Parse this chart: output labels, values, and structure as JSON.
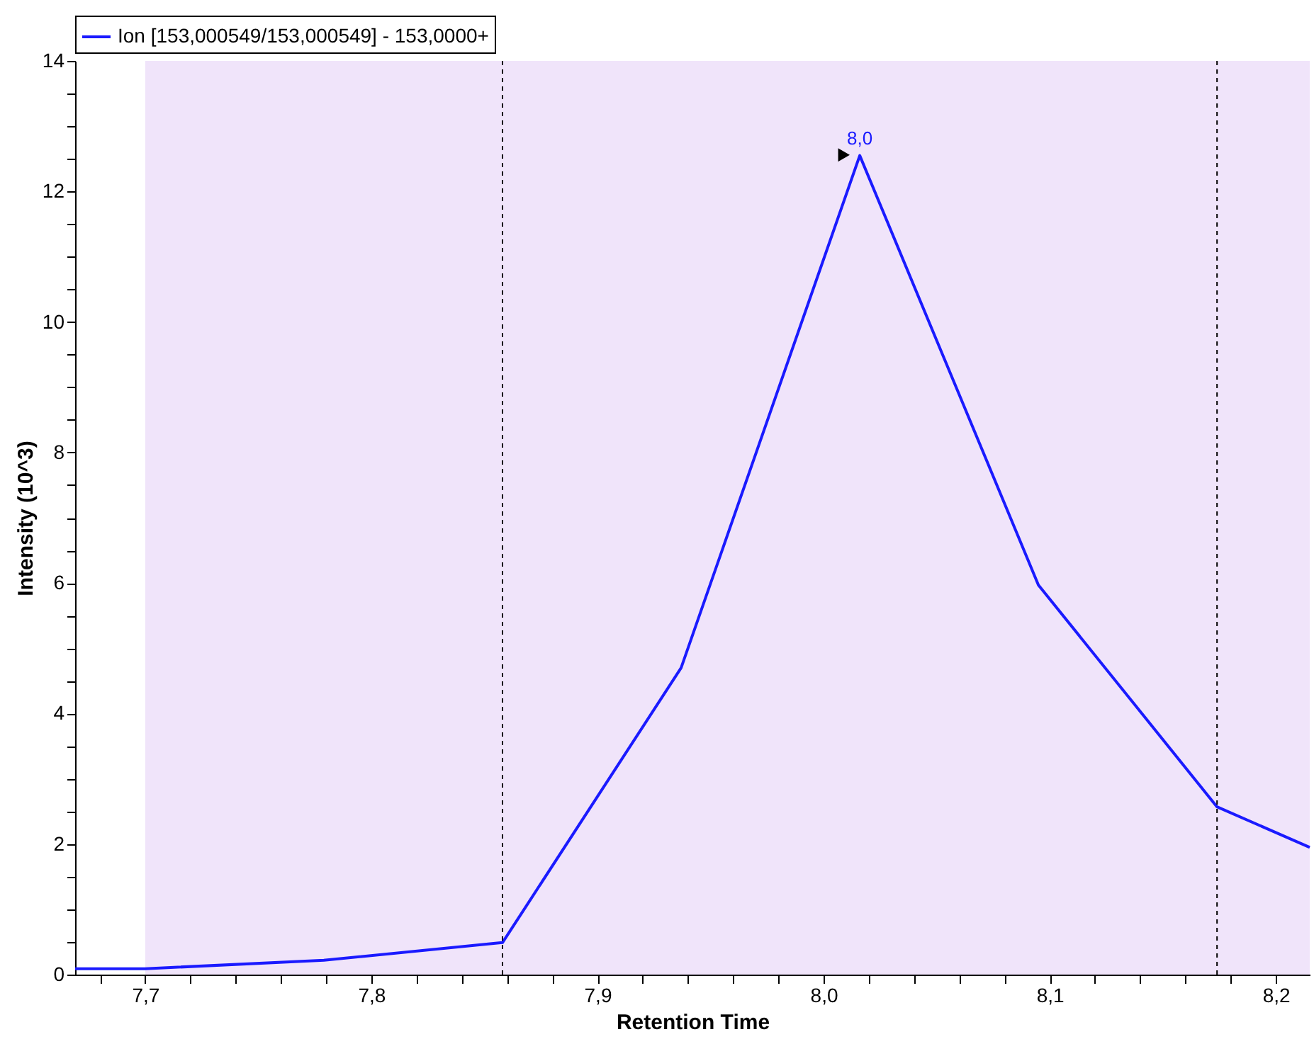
{
  "chart_data": {
    "type": "line",
    "xlabel": "Retention Time",
    "ylabel": "Intensity (10^3)",
    "x": [
      7.669,
      7.7,
      7.779,
      7.858,
      7.937,
      8.016,
      8.095,
      8.174,
      8.215
    ],
    "series": [
      {
        "name": "Ion [153,000549/153,000549] - 153,0000+",
        "color": "#1a1aff",
        "values": [
          0.09,
          0.09,
          0.22,
          0.49,
          4.7,
          12.55,
          5.97,
          2.57,
          1.95
        ]
      },
      {
        "type": "scatter",
        "color": "#000000",
        "marker": "triangle",
        "x": [
          8.009
        ],
        "values": [
          12.56
        ]
      }
    ],
    "xlim": [
      7.669,
      8.215
    ],
    "xticks": [
      {
        "value": 7.68,
        "label": null
      },
      {
        "value": 7.7,
        "label": "7,7"
      },
      {
        "value": 7.72,
        "label": null
      },
      {
        "value": 7.74,
        "label": null
      },
      {
        "value": 7.76,
        "label": null
      },
      {
        "value": 7.78,
        "label": null
      },
      {
        "value": 7.8,
        "label": "7,8"
      },
      {
        "value": 7.82,
        "label": null
      },
      {
        "value": 7.84,
        "label": null
      },
      {
        "value": 7.86,
        "label": null
      },
      {
        "value": 7.88,
        "label": null
      },
      {
        "value": 7.9,
        "label": "7,9"
      },
      {
        "value": 7.92,
        "label": null
      },
      {
        "value": 7.94,
        "label": null
      },
      {
        "value": 7.96,
        "label": null
      },
      {
        "value": 7.98,
        "label": null
      },
      {
        "value": 8.0,
        "label": "8,0"
      },
      {
        "value": 8.02,
        "label": null
      },
      {
        "value": 8.04,
        "label": null
      },
      {
        "value": 8.06,
        "label": null
      },
      {
        "value": 8.08,
        "label": null
      },
      {
        "value": 8.1,
        "label": "8,1"
      },
      {
        "value": 8.12,
        "label": null
      },
      {
        "value": 8.14,
        "label": null
      },
      {
        "value": 8.16,
        "label": null
      },
      {
        "value": 8.18,
        "label": null
      },
      {
        "value": 8.2,
        "label": "8,2"
      }
    ],
    "ylim": [
      0,
      14
    ],
    "yticks": [
      0,
      {
        "value": 0.5,
        "label": null
      },
      {
        "value": 1,
        "label": null
      },
      {
        "value": 1.5,
        "label": null
      },
      2,
      {
        "value": 2.5,
        "label": null
      },
      {
        "value": 3,
        "label": null
      },
      {
        "value": 3.5,
        "label": null
      },
      4,
      {
        "value": 4.5,
        "label": null
      },
      {
        "value": 5,
        "label": null
      },
      {
        "value": 5.5,
        "label": null
      },
      6,
      {
        "value": 6.5,
        "label": null
      },
      {
        "value": 7,
        "label": null
      },
      {
        "value": 7.5,
        "label": null
      },
      8,
      {
        "value": 8.5,
        "label": null
      },
      {
        "value": 9,
        "label": null
      },
      {
        "value": 9.5,
        "label": null
      },
      10,
      {
        "value": 10.5,
        "label": null
      },
      {
        "value": 11,
        "label": null
      },
      {
        "value": 11.5,
        "label": null
      },
      12,
      {
        "value": 12.5,
        "label": null
      },
      {
        "value": 13,
        "label": null
      },
      {
        "value": 13.5,
        "label": null
      },
      14
    ],
    "bands": [
      {
        "axis": "x",
        "from": 7.7,
        "to": 8.215,
        "color": "#f0e4fa"
      }
    ],
    "ref_lines": [
      {
        "axis": "x",
        "value": 7.858,
        "color": "#000000",
        "line_style": "dashed"
      },
      {
        "axis": "x",
        "value": 8.174,
        "color": "#000000",
        "line_style": "dashed"
      }
    ],
    "annotations": [
      {
        "text": "8,0",
        "x": 8.016,
        "y": 12.55
      }
    ],
    "grid": false,
    "legend": "top left",
    "marker": "none",
    "line_style": "solid"
  }
}
